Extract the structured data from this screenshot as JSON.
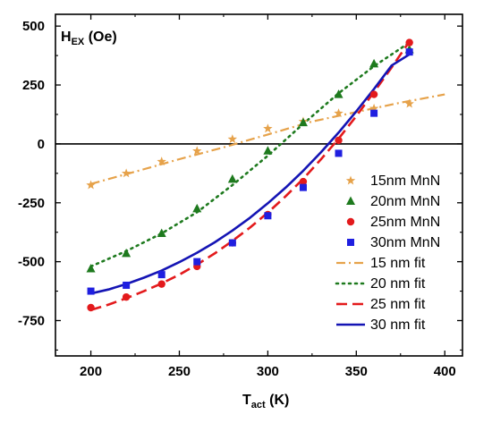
{
  "chart_data": {
    "type": "scatter",
    "xlabel": {
      "main": "T",
      "sub": "act",
      "unit": " (K)"
    },
    "ylabel": {
      "main": "H",
      "sub": "EX",
      "unit": " (Oe)"
    },
    "xlim": [
      180,
      410
    ],
    "ylim": [
      -900,
      550
    ],
    "xticks": [
      200,
      250,
      300,
      350,
      400
    ],
    "yticks": [
      -750,
      -500,
      -250,
      0,
      250,
      500
    ],
    "xtick_labels": [
      "200",
      "250",
      "300",
      "350",
      "400"
    ],
    "ytick_labels": [
      "-750",
      "-500",
      "-250",
      "0",
      "250",
      "500"
    ],
    "zero_line": true,
    "grid": false,
    "legend_position": "right",
    "series": [
      {
        "name": "15nm MnN",
        "marker": "star",
        "color": "#E6A24A",
        "x": [
          200,
          220,
          240,
          260,
          280,
          300,
          320,
          340,
          360,
          380
        ],
        "y": [
          -175,
          -125,
          -75,
          -30,
          20,
          65,
          95,
          130,
          150,
          170
        ]
      },
      {
        "name": "20nm MnN",
        "marker": "triangle",
        "color": "#1E7A1E",
        "x": [
          200,
          220,
          240,
          260,
          280,
          300,
          320,
          340,
          360,
          380
        ],
        "y": [
          -530,
          -465,
          -380,
          -275,
          -150,
          -30,
          90,
          210,
          340,
          400
        ]
      },
      {
        "name": "25nm MnN",
        "marker": "circle",
        "color": "#E31A1C",
        "x": [
          200,
          220,
          240,
          260,
          280,
          300,
          320,
          340,
          360,
          380
        ],
        "y": [
          -695,
          -650,
          -595,
          -520,
          -420,
          -300,
          -160,
          15,
          210,
          430
        ]
      },
      {
        "name": "30nm MnN",
        "marker": "square",
        "color": "#1F1FE0",
        "x": [
          200,
          220,
          240,
          260,
          280,
          300,
          320,
          340,
          360,
          380
        ],
        "y": [
          -625,
          -600,
          -555,
          -500,
          -420,
          -305,
          -185,
          -40,
          130,
          390
        ]
      }
    ],
    "fits": [
      {
        "name": "15 nm fit",
        "style": "dashdot",
        "color": "#E6A24A",
        "x": [
          200,
          225,
          250,
          275,
          300,
          325,
          350,
          375,
          400
        ],
        "y": [
          -170,
          -118,
          -65,
          -15,
          40,
          95,
          135,
          175,
          210
        ]
      },
      {
        "name": "20 nm fit",
        "style": "dotted",
        "color": "#1E7A1E",
        "x": [
          200,
          220,
          240,
          260,
          280,
          300,
          320,
          340,
          360,
          380
        ],
        "y": [
          -520,
          -455,
          -380,
          -290,
          -175,
          -50,
          85,
          215,
          330,
          430
        ]
      },
      {
        "name": "25 nm fit",
        "style": "dashed",
        "color": "#E31A1C",
        "x": [
          200,
          210,
          220,
          230,
          240,
          250,
          260,
          270,
          280,
          290,
          300,
          310,
          320,
          330,
          340,
          350,
          360,
          370,
          380
        ],
        "y": [
          -705,
          -682,
          -655,
          -625,
          -592,
          -555,
          -512,
          -465,
          -412,
          -355,
          -292,
          -223,
          -148,
          -66,
          22,
          118,
          220,
          325,
          435
        ]
      },
      {
        "name": "30 nm fit",
        "style": "solid",
        "color": "#1414B4",
        "x": [
          200,
          210,
          220,
          230,
          240,
          250,
          260,
          270,
          280,
          290,
          300,
          310,
          320,
          330,
          340,
          350,
          360,
          370,
          380
        ],
        "y": [
          -635,
          -618,
          -595,
          -568,
          -538,
          -502,
          -462,
          -418,
          -368,
          -313,
          -252,
          -186,
          -114,
          -36,
          48,
          138,
          233,
          333,
          380
        ]
      }
    ]
  }
}
